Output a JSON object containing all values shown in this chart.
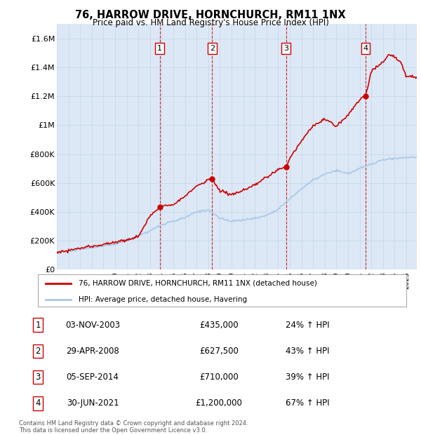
{
  "title": "76, HARROW DRIVE, HORNCHURCH, RM11 1NX",
  "subtitle": "Price paid vs. HM Land Registry's House Price Index (HPI)",
  "ylim": [
    0,
    1700000
  ],
  "yticks": [
    0,
    200000,
    400000,
    600000,
    800000,
    1000000,
    1200000,
    1400000,
    1600000
  ],
  "ytick_labels": [
    "£0",
    "£200K",
    "£400K",
    "£600K",
    "£800K",
    "£1M",
    "£1.2M",
    "£1.4M",
    "£1.6M"
  ],
  "sale_color": "#cc0000",
  "hpi_color": "#aac8e8",
  "vline_color": "#cc0000",
  "background_color": "#dce8f5",
  "plot_bg": "#ffffff",
  "grid_color": "#c8d8e8",
  "legend_sale_label": "76, HARROW DRIVE, HORNCHURCH, RM11 1NX (detached house)",
  "legend_hpi_label": "HPI: Average price, detached house, Havering",
  "table_rows": [
    [
      "1",
      "03-NOV-2003",
      "£435,000",
      "24% ↑ HPI"
    ],
    [
      "2",
      "29-APR-2008",
      "£627,500",
      "43% ↑ HPI"
    ],
    [
      "3",
      "05-SEP-2014",
      "£710,000",
      "39% ↑ HPI"
    ],
    [
      "4",
      "30-JUN-2021",
      "£1,200,000",
      "67% ↑ HPI"
    ]
  ],
  "footer": "Contains HM Land Registry data © Crown copyright and database right 2024.\nThis data is licensed under the Open Government Licence v3.0.",
  "sale_year_nums": [
    2003.84,
    2008.33,
    2014.67,
    2021.5
  ],
  "sale_prices": [
    435000,
    627500,
    710000,
    1200000
  ],
  "sale_labels": [
    "1",
    "2",
    "3",
    "4"
  ],
  "xmin": 1995,
  "xmax": 2025.9
}
